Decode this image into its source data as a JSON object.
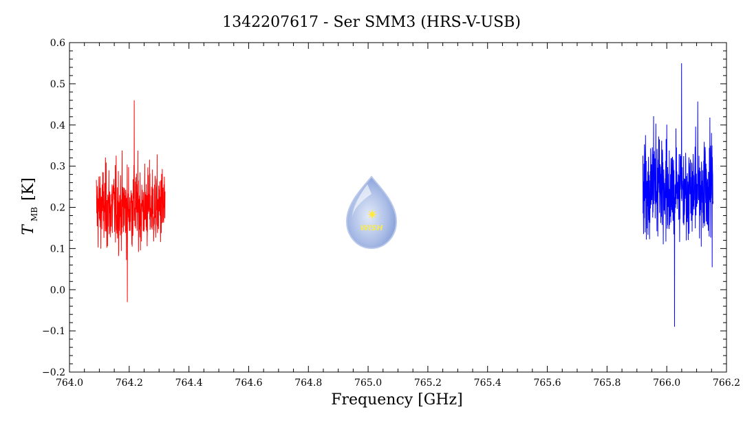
{
  "chart_data": {
    "type": "line",
    "title": "1342207617 - Ser SMM3 (HRS-V-USB)",
    "xlabel": "Frequency [GHz]",
    "ylabel": {
      "symbol": "T",
      "subscript": "MB",
      "unit": "[K]"
    },
    "xlim": [
      764.0,
      766.2
    ],
    "ylim": [
      -0.2,
      0.6
    ],
    "xticks": [
      "764.0",
      "764.2",
      "764.4",
      "764.6",
      "764.8",
      "765.0",
      "765.2",
      "765.4",
      "765.6",
      "765.8",
      "766.0",
      "766.2"
    ],
    "yticks": [
      "-0.2",
      "-0.1",
      "0.0",
      "0.1",
      "0.2",
      "0.3",
      "0.4",
      "0.5",
      "0.6"
    ],
    "grid": false,
    "watermark": {
      "label": "WISH",
      "icon": "water-drop-star-icon",
      "color": "#7f9fd9"
    },
    "series": [
      {
        "color": "#ff0000",
        "x_range": [
          764.09,
          764.32
        ],
        "points": 400,
        "center": 0.2,
        "min": -0.03,
        "max": 0.46
      },
      {
        "color": "#0000ff",
        "x_range": [
          765.92,
          766.155
        ],
        "points": 400,
        "center": 0.25,
        "min": -0.09,
        "max": 0.55
      }
    ]
  }
}
